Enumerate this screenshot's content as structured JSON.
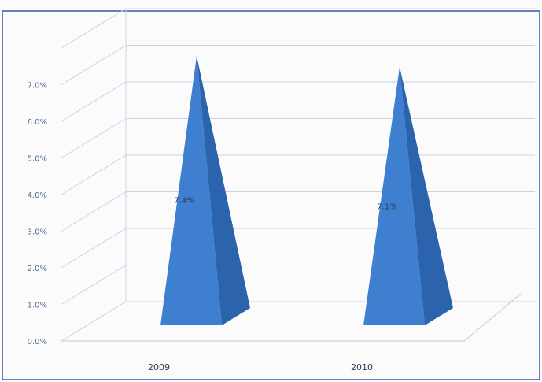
{
  "chart_data": {
    "type": "bar",
    "style": "3d-pyramid",
    "categories": [
      "2009",
      "2010"
    ],
    "values": [
      7.4,
      7.1
    ],
    "data_labels": [
      "7.4%",
      "7.1%"
    ],
    "y_ticks": [
      "0.0%",
      "1.0%",
      "2.0%",
      "3.0%",
      "4.0%",
      "5.0%",
      "6.0%",
      "7.0%"
    ],
    "ylim": [
      0,
      8
    ],
    "grid": true,
    "legend": "none",
    "colors": {
      "bar": "#3f7fd0",
      "bar_shade": "#2b63ad",
      "grid": "#c8d3e6",
      "frame": "#3a55a5"
    }
  }
}
